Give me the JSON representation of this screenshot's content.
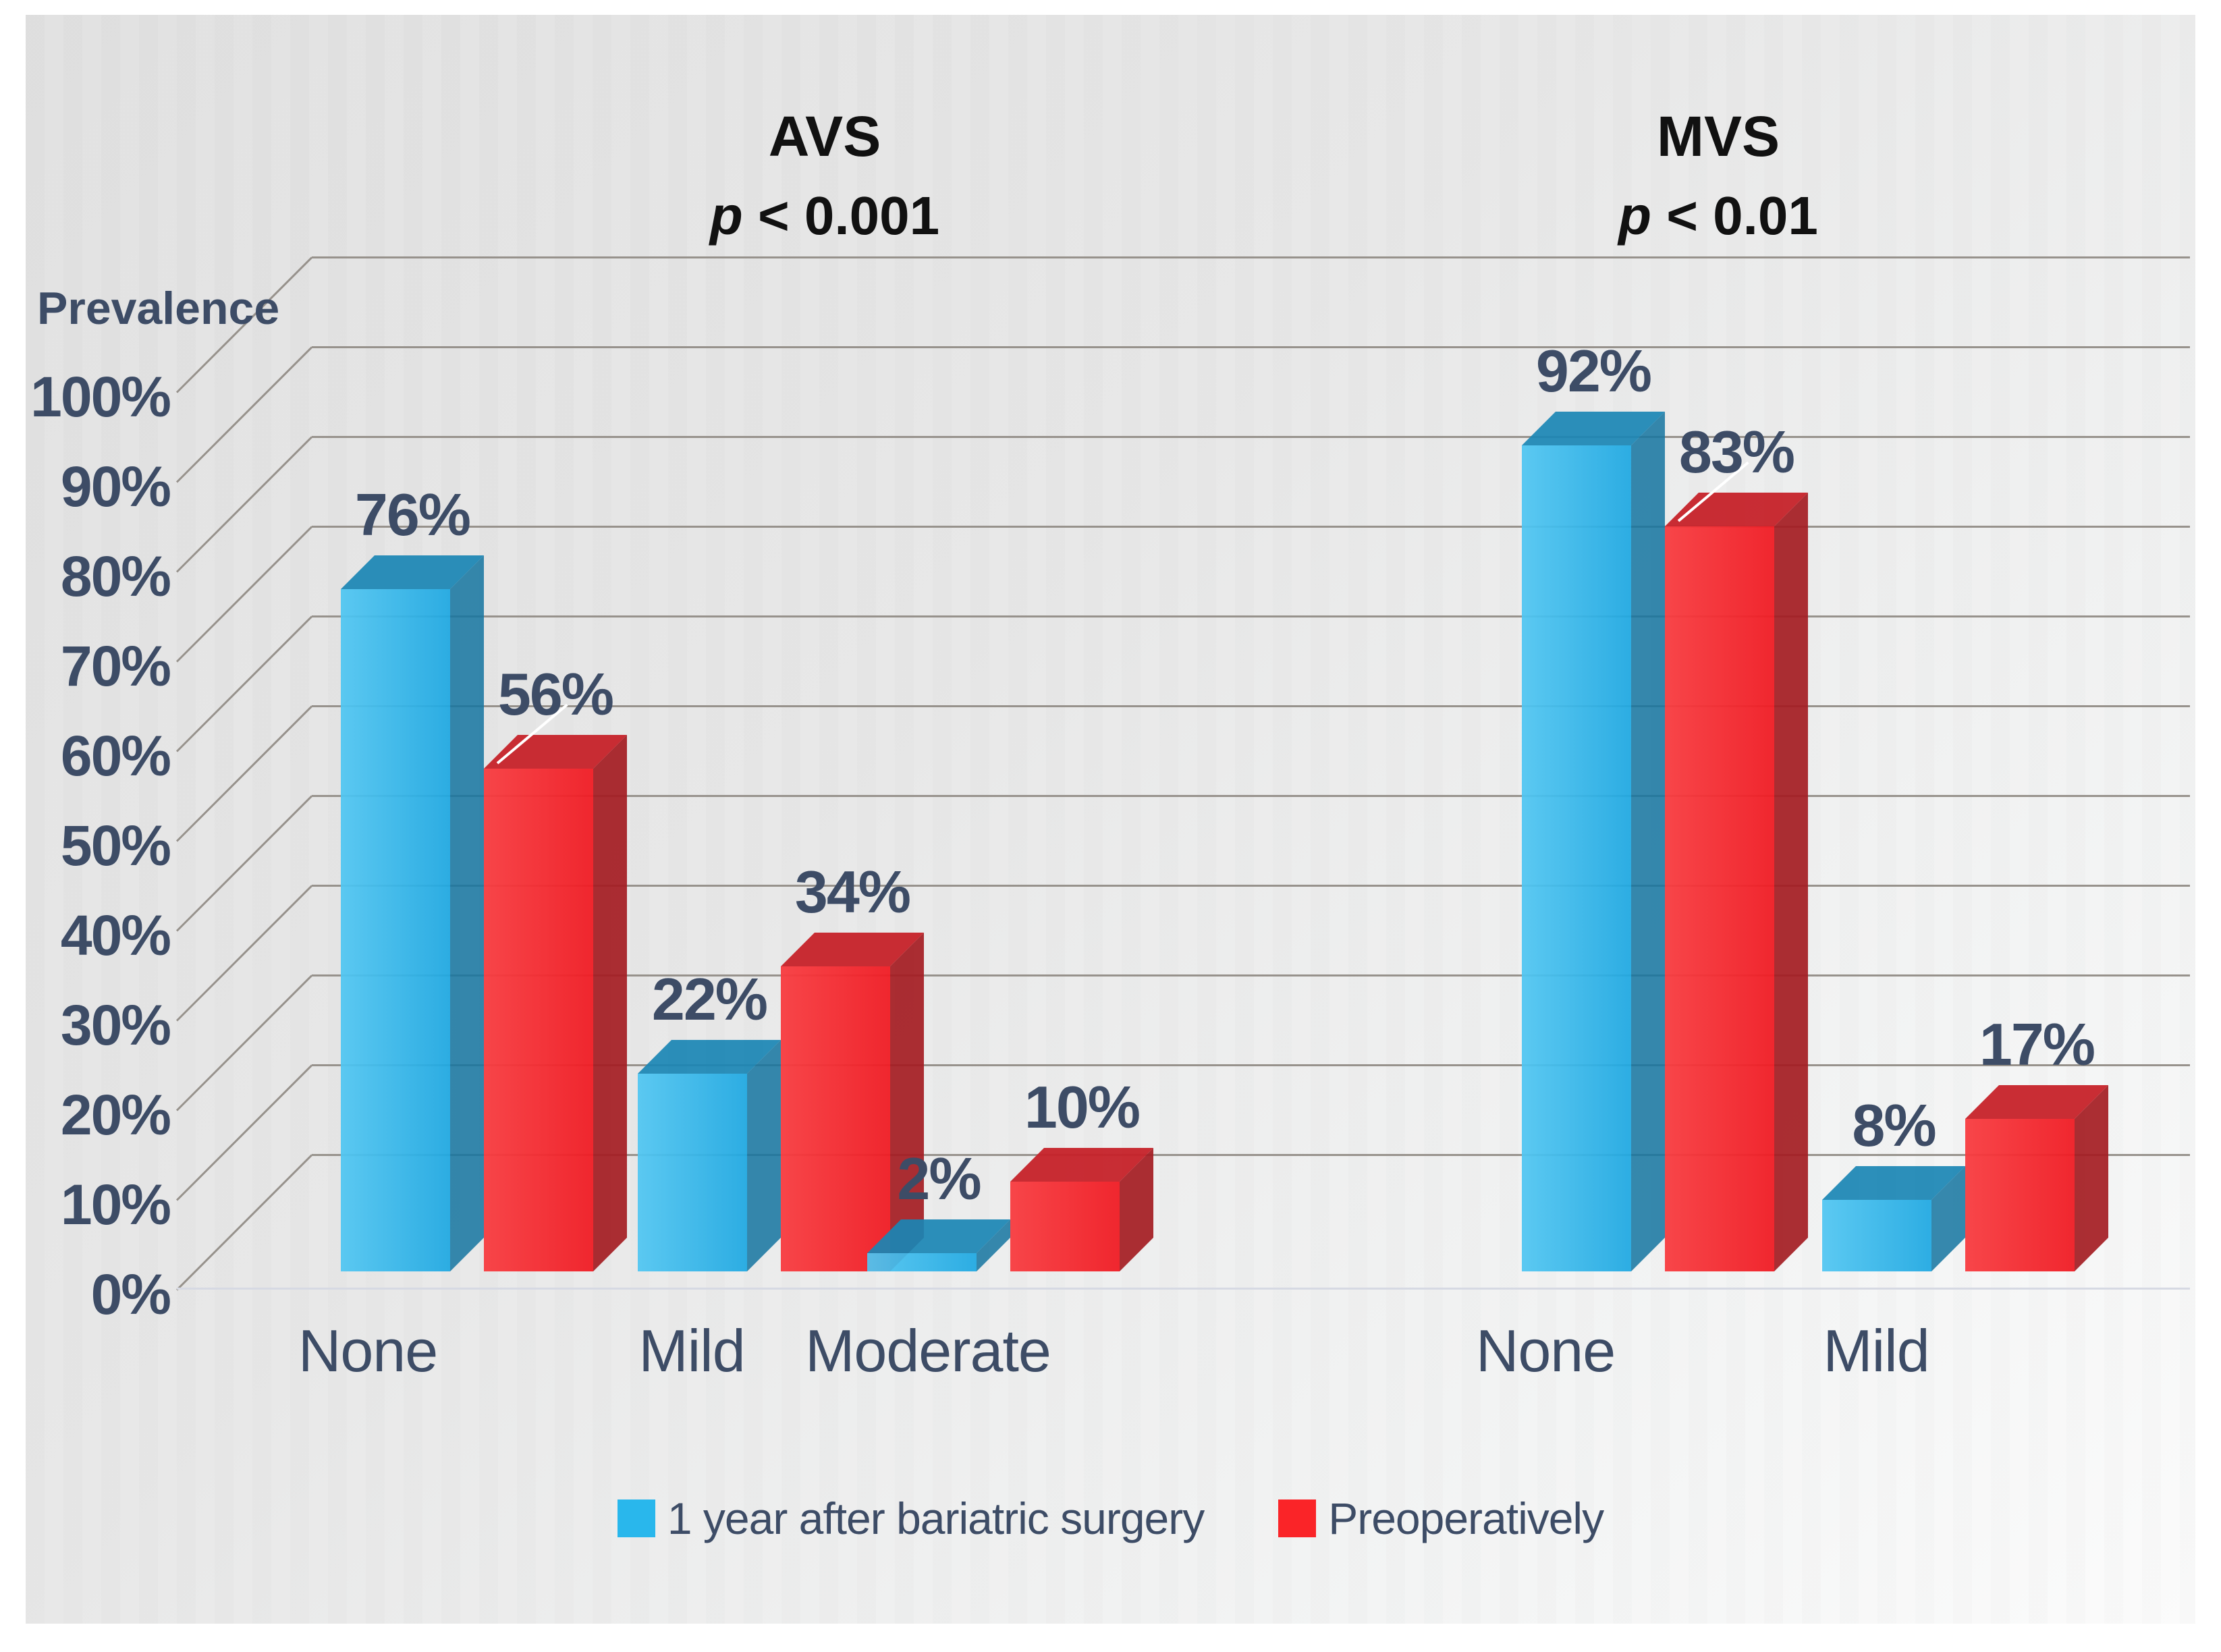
{
  "chart_data": {
    "type": "bar",
    "ylabel": "Prevalence",
    "y_ticks": [
      "100%",
      "90%",
      "80%",
      "70%",
      "60%",
      "50%",
      "40%",
      "30%",
      "20%",
      "10%",
      "0%"
    ],
    "ylim": [
      0,
      100
    ],
    "grid": true,
    "legend_position": "bottom",
    "panels": [
      {
        "label": "AVS",
        "pvalue": "p < 0.001",
        "pvalue_prefix": "p",
        "pvalue_suffix": " < 0.001",
        "categories": [
          "None",
          "Mild",
          "Moderate"
        ]
      },
      {
        "label": "MVS",
        "pvalue": "p < 0.01",
        "pvalue_prefix": "p",
        "pvalue_suffix": " < 0.01",
        "categories": [
          "None",
          "Mild"
        ]
      }
    ],
    "series": [
      {
        "name": "1 year after bariatric surgery",
        "legend_color": "#29b7ec",
        "color_front": "linear-gradient(90deg, rgba(80,198,242,0.93), rgba(30,168,226,0.93))",
        "color_top": "rgba(26,134,180,0.92)",
        "color_side": "rgba(20,116,160,0.85)"
      },
      {
        "name": "Preoperatively",
        "legend_color": "#fa2428",
        "color_front": "linear-gradient(90deg, rgba(248,60,64,0.95), rgba(240,28,36,0.95))",
        "color_top": "rgba(198,34,41,0.95)",
        "color_side": "rgba(164,28,34,0.92)"
      }
    ],
    "bars": [
      {
        "panel": "AVS",
        "category": "None",
        "series": "1 year after bariatric surgery",
        "value": 76,
        "label": "76%"
      },
      {
        "panel": "AVS",
        "category": "None",
        "series": "Preoperatively",
        "value": 56,
        "label": "56%",
        "leader_line": true
      },
      {
        "panel": "AVS",
        "category": "Mild",
        "series": "1 year after bariatric surgery",
        "value": 22,
        "label": "22%"
      },
      {
        "panel": "AVS",
        "category": "Mild",
        "series": "Preoperatively",
        "value": 34,
        "label": "34%"
      },
      {
        "panel": "AVS",
        "category": "Moderate",
        "series": "1 year after bariatric surgery",
        "value": 2,
        "label": "2%"
      },
      {
        "panel": "AVS",
        "category": "Moderate",
        "series": "Preoperatively",
        "value": 10,
        "label": "10%"
      },
      {
        "panel": "MVS",
        "category": "None",
        "series": "1 year after bariatric surgery",
        "value": 92,
        "label": "92%"
      },
      {
        "panel": "MVS",
        "category": "None",
        "series": "Preoperatively",
        "value": 83,
        "label": "83%",
        "leader_line": true
      },
      {
        "panel": "MVS",
        "category": "Mild",
        "series": "1 year after bariatric surgery",
        "value": 8,
        "label": "8%"
      },
      {
        "panel": "MVS",
        "category": "Mild",
        "series": "Preoperatively",
        "value": 17,
        "label": "17%"
      }
    ],
    "style": {
      "text_color": "#3d4c66",
      "title_color": "#111111",
      "grid_color": "#97928c",
      "floor_line_color": "#d6d9e3",
      "leader_line_color": "#ffffff",
      "panel_background": "#e8e8e8"
    }
  }
}
